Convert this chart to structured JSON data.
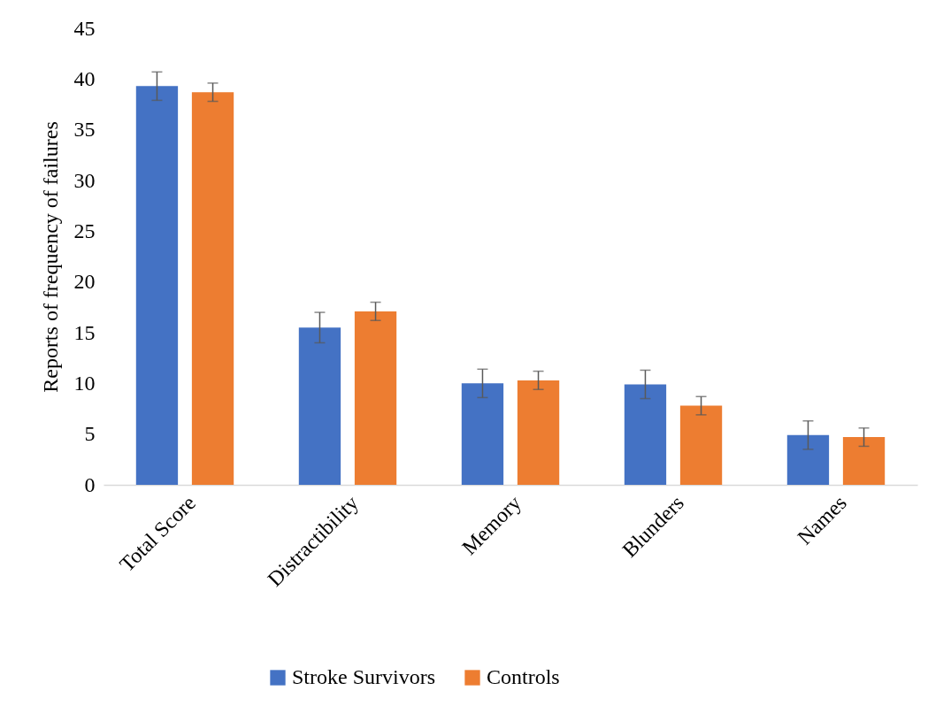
{
  "chart_data": {
    "type": "bar",
    "ylabel": "Reports of frequency of failures",
    "categories": [
      "Total Score",
      "Distractibility",
      "Memory",
      "Blunders",
      "Names"
    ],
    "series": [
      {
        "name": "Stroke Survivors",
        "color": "#4472c4",
        "values": [
          39.3,
          15.5,
          10.0,
          9.9,
          4.9
        ],
        "errors": [
          1.4,
          1.5,
          1.4,
          1.4,
          1.4
        ]
      },
      {
        "name": "Controls",
        "color": "#ed7d31",
        "values": [
          38.7,
          17.1,
          10.3,
          7.8,
          4.7
        ],
        "errors": [
          0.9,
          0.9,
          0.9,
          0.9,
          0.9
        ]
      }
    ],
    "ylim": [
      0,
      45
    ],
    "yticks": [
      0,
      5,
      10,
      15,
      20,
      25,
      30,
      35,
      40,
      45
    ],
    "grid": false,
    "legend": "bottom"
  }
}
